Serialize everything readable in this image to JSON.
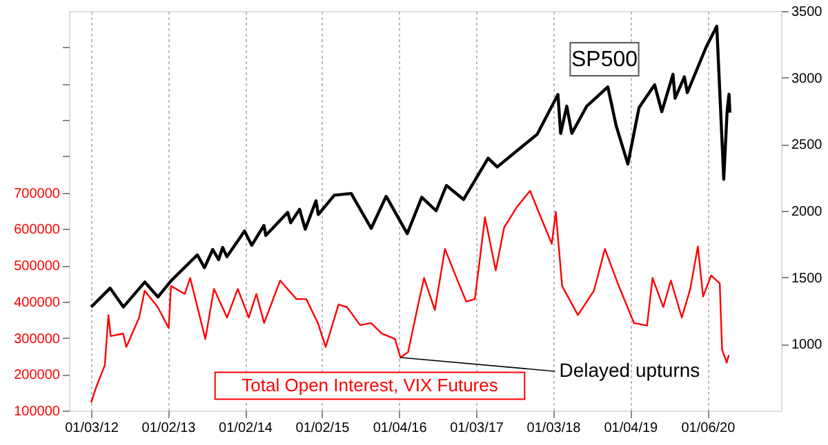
{
  "chart_data": {
    "type": "line",
    "xlim": [
      "2011-09-20",
      "2020-12-20"
    ],
    "xticks": [
      {
        "value": "2012-01-03",
        "label": "01/03/12"
      },
      {
        "value": "2013-01-02",
        "label": "01/02/13"
      },
      {
        "value": "2014-01-02",
        "label": "01/02/14"
      },
      {
        "value": "2015-01-02",
        "label": "01/02/15"
      },
      {
        "value": "2016-01-04",
        "label": "01/04/16"
      },
      {
        "value": "2017-01-03",
        "label": "01/03/17"
      },
      {
        "value": "2018-01-03",
        "label": "01/03/18"
      },
      {
        "value": "2019-01-04",
        "label": "01/04/19"
      },
      {
        "value": "2020-01-06",
        "label": "01/06/20"
      }
    ],
    "ylim": [
      100000,
      1200000
    ],
    "yticks": [
      100000,
      200000,
      300000,
      400000,
      500000,
      600000,
      700000,
      {
        "value": 800000,
        "label": null
      },
      {
        "value": 900000,
        "label": null
      },
      {
        "value": 1000000,
        "label": null
      },
      {
        "value": 1100000,
        "label": null
      }
    ],
    "y2lim": [
      500,
      3500
    ],
    "y2ticks": [
      1000,
      1500,
      2000,
      2500,
      3000,
      3500
    ],
    "grid": "x",
    "line_style": "solid",
    "annotations": [
      {
        "text": "Delayed upturns",
        "x": "2016-01-10",
        "y": 246000
      }
    ],
    "series": [
      {
        "name": "Total Open Interest, VIX Futures",
        "color": "#ff0000",
        "x": [
          "2012-01-03",
          "2012-01-28",
          "2012-03-08",
          "2012-03-25",
          "2012-04-05",
          "2012-06-03",
          "2012-06-18",
          "2012-08-18",
          "2012-09-13",
          "2012-11-14",
          "2013-01-05",
          "2013-01-16",
          "2013-03-22",
          "2013-04-17",
          "2013-06-28",
          "2013-08-08",
          "2013-10-09",
          "2013-11-29",
          "2014-01-20",
          "2014-02-25",
          "2014-04-03",
          "2014-06-18",
          "2014-09-03",
          "2014-10-20",
          "2014-12-14",
          "2015-01-20",
          "2015-03-22",
          "2015-05-01",
          "2015-07-03",
          "2015-08-23",
          "2015-10-13",
          "2015-12-15",
          "2016-01-10",
          "2016-02-15",
          "2016-04-06",
          "2016-05-01",
          "2016-06-21",
          "2016-08-08",
          "2016-09-27",
          "2016-11-17",
          "2016-12-28",
          "2017-02-14",
          "2017-04-06",
          "2017-05-16",
          "2017-07-16",
          "2017-09-16",
          "2017-11-06",
          "2017-12-28",
          "2018-01-16",
          "2018-02-15",
          "2018-05-01",
          "2018-07-16",
          "2018-09-06",
          "2018-11-06",
          "2019-01-22",
          "2019-03-25",
          "2019-04-20",
          "2019-06-10",
          "2019-07-16",
          "2019-09-06",
          "2019-10-16",
          "2019-11-21",
          "2019-12-16",
          "2020-01-23",
          "2020-03-04",
          "2020-03-15",
          "2020-04-06",
          "2020-04-16"
        ],
        "values": [
          122000,
          166000,
          225000,
          363000,
          305000,
          312000,
          275000,
          356000,
          430000,
          385000,
          327000,
          443000,
          421000,
          465000,
          297000,
          435000,
          356000,
          435000,
          356000,
          421000,
          341000,
          458000,
          407000,
          407000,
          341000,
          275000,
          392000,
          385000,
          335000,
          341000,
          312000,
          297000,
          246000,
          261000,
          400000,
          465000,
          377000,
          545000,
          472000,
          400000,
          407000,
          632000,
          486000,
          604000,
          661000,
          705000,
          632000,
          559000,
          647000,
          443000,
          363000,
          430000,
          545000,
          450000,
          341000,
          334000,
          465000,
          385000,
          458000,
          356000,
          435000,
          552000,
          414000,
          472000,
          450000,
          268000,
          232000,
          253000
        ]
      },
      {
        "name": "SP500",
        "color": "#000000",
        "axis": "y2",
        "x": [
          "2012-01-03",
          "2012-04-02",
          "2012-06-04",
          "2012-09-14",
          "2012-11-15",
          "2013-01-15",
          "2013-05-21",
          "2013-06-24",
          "2013-08-02",
          "2013-08-30",
          "2013-09-18",
          "2013-10-08",
          "2013-12-31",
          "2014-02-03",
          "2014-04-02",
          "2014-04-11",
          "2014-07-24",
          "2014-08-07",
          "2014-09-18",
          "2014-10-15",
          "2014-12-05",
          "2014-12-16",
          "2015-03-02",
          "2015-05-21",
          "2015-08-24",
          "2015-11-03",
          "2016-02-11",
          "2016-04-20",
          "2016-06-27",
          "2016-08-15",
          "2016-11-04",
          "2017-03-01",
          "2017-04-13",
          "2017-08-07",
          "2017-10-20",
          "2018-01-26",
          "2018-02-08",
          "2018-03-09",
          "2018-04-02",
          "2018-06-12",
          "2018-09-20",
          "2018-10-29",
          "2018-12-24",
          "2019-02-15",
          "2019-04-30",
          "2019-06-03",
          "2019-07-26",
          "2019-08-05",
          "2019-09-18",
          "2019-10-02",
          "2019-12-31",
          "2020-02-19",
          "2020-03-23",
          "2020-04-08",
          "2020-04-17",
          "2020-04-21"
        ],
        "values": [
          1277,
          1419,
          1278,
          1465,
          1353,
          1472,
          1669,
          1573,
          1709,
          1633,
          1725,
          1655,
          1848,
          1741,
          1890,
          1815,
          1988,
          1910,
          2011,
          1862,
          2075,
          1972,
          2117,
          2130,
          1868,
          2109,
          1829,
          2102,
          2000,
          2190,
          2085,
          2395,
          2329,
          2480,
          2575,
          2873,
          2581,
          2786,
          2581,
          2786,
          2930,
          2641,
          2351,
          2775,
          2946,
          2744,
          3025,
          2845,
          3006,
          2887,
          3231,
          3386,
          2237,
          2750,
          2875,
          2737
        ]
      }
    ]
  }
}
